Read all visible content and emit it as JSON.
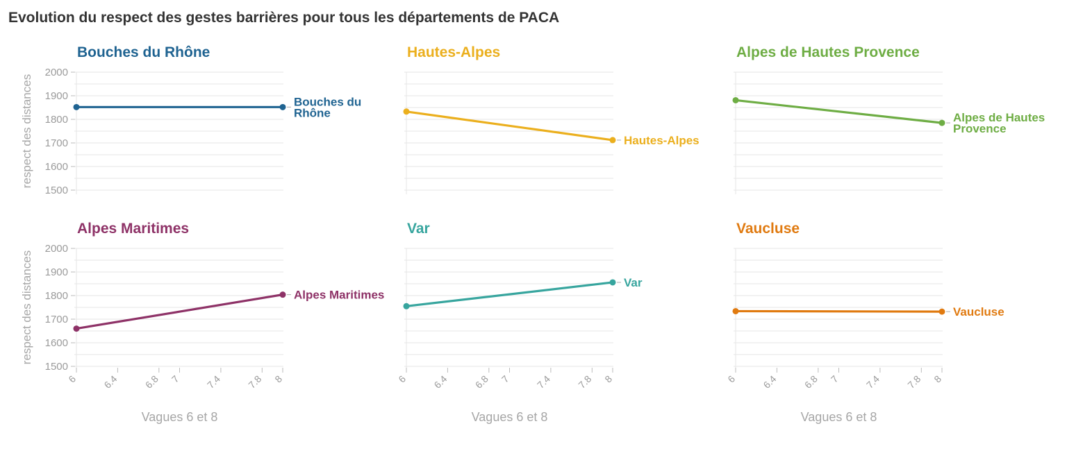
{
  "title": "Evolution du respect des gestes barrières pour tous les départements de PACA",
  "chart_data": {
    "type": "line",
    "layout": "small multiples, 2 rows x 3 columns",
    "x_ticks": [
      6,
      6.4,
      6.8,
      7,
      7.4,
      7.8,
      8
    ],
    "xlabel": "Vagues 6 et 8",
    "ylabel": "respect des distances",
    "y_ticks": [
      1500,
      1600,
      1700,
      1800,
      1900,
      2000
    ],
    "xlim": [
      6,
      8
    ],
    "ylim": [
      1500,
      2000
    ],
    "grid": true,
    "panels": [
      {
        "name": "Bouches du Rhône",
        "label_lines": [
          "Bouches du",
          "Rhône"
        ],
        "color": "#1f6391",
        "x": [
          6,
          8
        ],
        "values": [
          1852,
          1852
        ]
      },
      {
        "name": "Hautes-Alpes",
        "label_lines": [
          "Hautes-Alpes"
        ],
        "color": "#ebaf1d",
        "x": [
          6,
          8
        ],
        "values": [
          1833,
          1712
        ]
      },
      {
        "name": "Alpes de Hautes Provence",
        "label_lines": [
          "Alpes de Hautes",
          "Provence"
        ],
        "color": "#6ead44",
        "x": [
          6,
          8
        ],
        "values": [
          1881,
          1785
        ]
      },
      {
        "name": "Alpes Maritimes",
        "label_lines": [
          "Alpes Maritimes"
        ],
        "color": "#8e3267",
        "x": [
          6,
          8
        ],
        "values": [
          1660,
          1804
        ]
      },
      {
        "name": "Var",
        "label_lines": [
          "Var"
        ],
        "color": "#37a59e",
        "x": [
          6,
          8
        ],
        "values": [
          1755,
          1856
        ]
      },
      {
        "name": "Vaucluse",
        "label_lines": [
          "Vaucluse"
        ],
        "color": "#e07a10",
        "x": [
          6,
          8
        ],
        "values": [
          1734,
          1732
        ]
      }
    ]
  }
}
